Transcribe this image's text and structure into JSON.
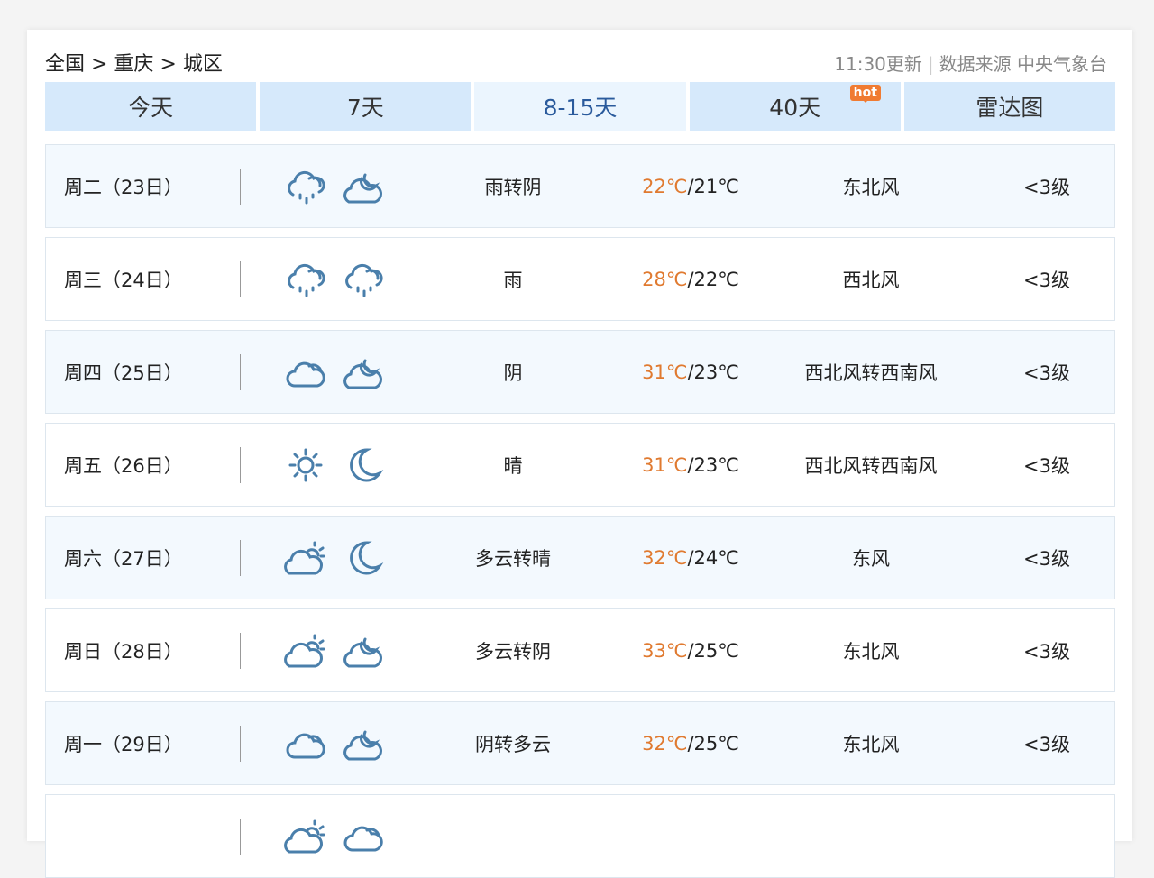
{
  "breadcrumb": "全国 > 重庆 > 城区",
  "update": "11:30更新",
  "source": "数据来源 中央气象台",
  "tabs": [
    {
      "label": "今天"
    },
    {
      "label": "7天"
    },
    {
      "label": "8-15天",
      "active": true
    },
    {
      "label": "40天",
      "badge": "hot"
    },
    {
      "label": "雷达图"
    }
  ],
  "colors": {
    "tab_bg": "#d6e9fb",
    "high_temp": "#e07a30",
    "icon": "#4a7fab"
  },
  "rows": [
    {
      "day": "周二（23日）",
      "icons": [
        "rain",
        "cloud-moon"
      ],
      "desc": "雨转阴",
      "high": "22℃",
      "low": "/21℃",
      "wind": "东北风",
      "level": "<3级"
    },
    {
      "day": "周三（24日）",
      "icons": [
        "rain",
        "rain"
      ],
      "desc": "雨",
      "high": "28℃",
      "low": "/22℃",
      "wind": "西北风",
      "level": "<3级"
    },
    {
      "day": "周四（25日）",
      "icons": [
        "cloud",
        "cloud-moon"
      ],
      "desc": "阴",
      "high": "31℃",
      "low": "/23℃",
      "wind": "西北风转西南风",
      "level": "<3级"
    },
    {
      "day": "周五（26日）",
      "icons": [
        "sun",
        "moon"
      ],
      "desc": "晴",
      "high": "31℃",
      "low": "/23℃",
      "wind": "西北风转西南风",
      "level": "<3级"
    },
    {
      "day": "周六（27日）",
      "icons": [
        "cloud-sun",
        "moon"
      ],
      "desc": "多云转晴",
      "high": "32℃",
      "low": "/24℃",
      "wind": "东风",
      "level": "<3级"
    },
    {
      "day": "周日（28日）",
      "icons": [
        "cloud-sun",
        "cloud-moon"
      ],
      "desc": "多云转阴",
      "high": "33℃",
      "low": "/25℃",
      "wind": "东北风",
      "level": "<3级"
    },
    {
      "day": "周一（29日）",
      "icons": [
        "cloud",
        "cloud-moon"
      ],
      "desc": "阴转多云",
      "high": "32℃",
      "low": "/25℃",
      "wind": "东北风",
      "level": "<3级"
    },
    {
      "day": "",
      "icons": [
        "cloud-sun",
        "cloud"
      ],
      "desc": "",
      "high": "",
      "low": "",
      "wind": "",
      "level": ""
    }
  ]
}
